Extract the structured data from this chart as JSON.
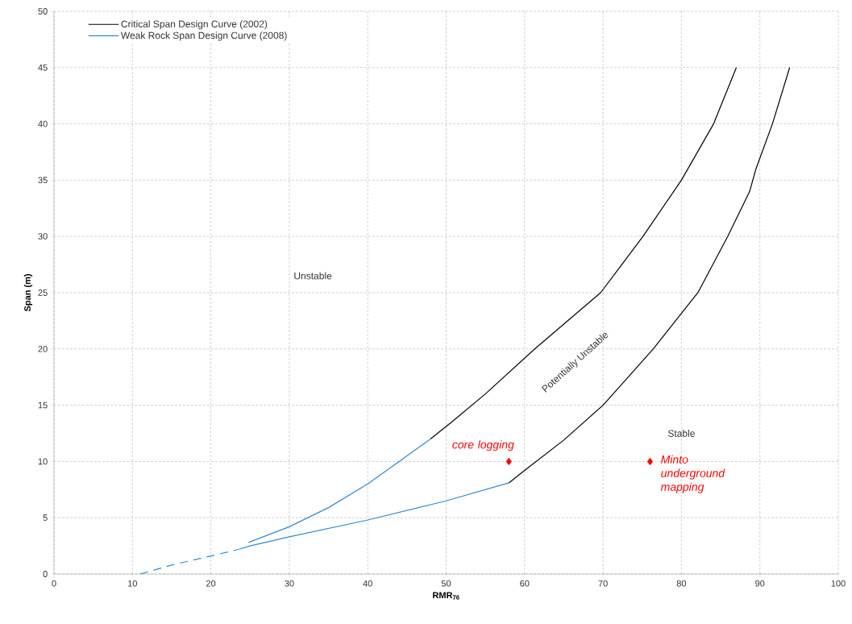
{
  "chart_data": {
    "type": "line",
    "xlabel": "RMR$_{76}$",
    "ylabel": "Span (m)",
    "xlim": [
      0,
      100
    ],
    "ylim": [
      0,
      50
    ],
    "xticks": [
      0,
      10,
      20,
      30,
      40,
      50,
      60,
      70,
      80,
      90,
      100
    ],
    "yticks": [
      0,
      5,
      10,
      15,
      20,
      25,
      30,
      35,
      40,
      45,
      50
    ],
    "grid": true,
    "legend": "top left",
    "marker": "none",
    "series": [
      {
        "name": "Critical Span Design Curve (2002)",
        "color": "#000000",
        "x": [
          48,
          50.7,
          55,
          61.3,
          65.5,
          69.7,
          75.1,
          80,
          84.1,
          87
        ],
        "values": [
          12,
          13.5,
          16,
          20,
          22.5,
          25,
          30,
          35,
          40,
          45
        ]
      },
      {
        "color": "#000000",
        "x": [
          58,
          60,
          65,
          70,
          76.4,
          82.1,
          85.9,
          88.7,
          89.5,
          91.6,
          93.8
        ],
        "values": [
          8.1,
          9.2,
          11.9,
          15,
          20,
          25,
          30,
          34,
          36,
          40,
          45
        ]
      },
      {
        "name": "Weak Rock Span Design Curve (2008)",
        "color": "#2e8bd6",
        "x": [
          24.8,
          30,
          35,
          40,
          44,
          48
        ],
        "values": [
          2.8,
          4.2,
          5.9,
          8,
          10,
          12
        ]
      },
      {
        "color": "#2e8bd6",
        "x": [
          23.6,
          25,
          30,
          40,
          50,
          58
        ],
        "values": [
          2.2,
          2.5,
          3.3,
          4.8,
          6.5,
          8.1
        ]
      },
      {
        "color": "#2e8bd6",
        "line_style": "dashed",
        "x": [
          11,
          15,
          20,
          23.6
        ],
        "values": [
          0,
          0.8,
          1.6,
          2.2
        ]
      },
      {
        "type": "scatter",
        "marker": "diamond",
        "color": "#ff0000",
        "x": [
          58,
          76
        ],
        "values": [
          10,
          10
        ]
      }
    ],
    "annotations": [
      "Unstable",
      "Potentially Unstable",
      "Stable",
      {
        "text": "core logging",
        "x": 58,
        "y": 10
      },
      {
        "text": "Minto underground mapping",
        "x": 76,
        "y": 10
      }
    ]
  }
}
